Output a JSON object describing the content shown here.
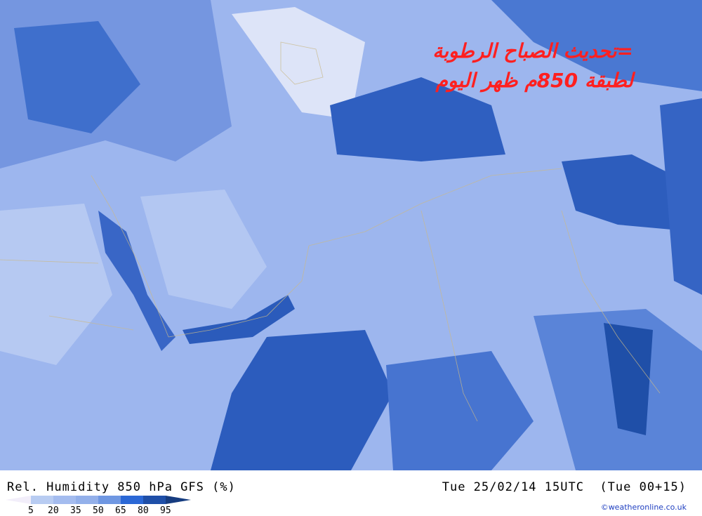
{
  "map": {
    "overlay_text": [
      "=تحديث الصباح الرطوبة",
      "لطبقة 850م ظهر اليوم"
    ],
    "overlay_color": "#ff2020"
  },
  "footer": {
    "title": "Rel. Humidity 850 hPa GFS (%)",
    "valid_time": "Tue 25/02/14 15UTC  (Tue 00+15)",
    "credit": "©weatheronline.co.uk",
    "legend": {
      "ticks": [
        "5",
        "20",
        "35",
        "50",
        "65",
        "80",
        "95"
      ],
      "colors": [
        "#f2eefa",
        "#b8ccf2",
        "#a4bcef",
        "#93b0ea",
        "#6f97e2",
        "#2b68d6",
        "#1f4fa8",
        "#163c80"
      ]
    }
  }
}
